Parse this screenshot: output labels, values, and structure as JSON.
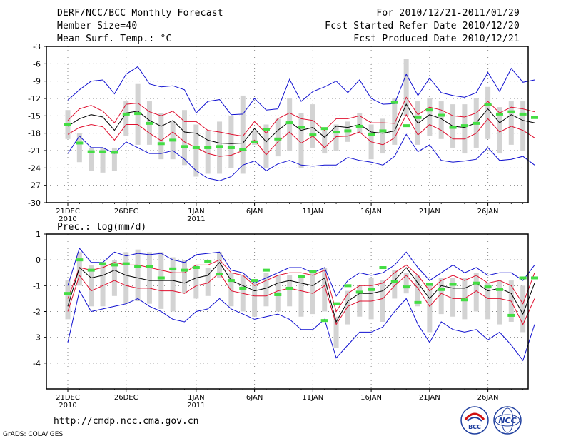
{
  "header": {
    "title": "DERF/NCC/BCC Monthly Forecast",
    "member_size": "Member Size=40",
    "variable": "Mean Surf. Temp.: °C",
    "forecast_for": "For 2010/12/21-2011/01/29",
    "start_date": "Fcst Started Refer Date 2010/12/20",
    "produced_date": "Fcst Produced Date 2010/12/21"
  },
  "footer": {
    "url": "http://cmdp.ncc.cma.gov.cn",
    "grads": "GrADS: COLA/IGES",
    "logo_bcc": "BCC",
    "logo_ncc": "NCC"
  },
  "colors": {
    "box": "#d3d3d3",
    "mean": "#000000",
    "spread": "#e0102f",
    "extreme": "#1010d0",
    "marker": "#44dd44",
    "grid": "#888888"
  },
  "chart_data": [
    {
      "id": "temp",
      "type": "line",
      "title": "Mean Surf. Temp.: °C",
      "ylabel": "°C",
      "ylim": [
        -30,
        -3
      ],
      "yticks": [
        -3,
        -6,
        -9,
        -12,
        -15,
        -18,
        -21,
        -24,
        -27,
        -30
      ],
      "xticks": [
        {
          "day": 1,
          "label": "21DEC",
          "sub": "2010"
        },
        {
          "day": 6,
          "label": "26DEC",
          "sub": ""
        },
        {
          "day": 12,
          "label": "1JAN",
          "sub": "2011"
        },
        {
          "day": 17,
          "label": "6JAN",
          "sub": ""
        },
        {
          "day": 22,
          "label": "11JAN",
          "sub": ""
        },
        {
          "day": 27,
          "label": "16JAN",
          "sub": ""
        },
        {
          "day": 32,
          "label": "21JAN",
          "sub": ""
        },
        {
          "day": 37,
          "label": "26JAN",
          "sub": ""
        }
      ],
      "days": 40,
      "grid": true,
      "series": [
        {
          "name": "ensemble max",
          "values": [
            -12.3,
            -10.5,
            -9.0,
            -8.8,
            -11.2,
            -7.8,
            -6.5,
            -9.5,
            -10.0,
            -9.8,
            -10.5,
            -14.5,
            -12.5,
            -12.2,
            -14.8,
            -14.7,
            -12.0,
            -14.0,
            -13.8,
            -8.7,
            -12.5,
            -10.8,
            -10.0,
            -9.0,
            -11.0,
            -8.8,
            -12.0,
            -13.0,
            -12.9,
            -7.8,
            -11.5,
            -8.5,
            -11.0,
            -11.5,
            -11.8,
            -11.0,
            -7.5,
            -10.8,
            -6.8,
            -9.2,
            -8.8
          ]
        },
        {
          "name": "upper spread",
          "values": [
            -15.8,
            -13.8,
            -13.2,
            -14.2,
            -16.2,
            -13.0,
            -12.8,
            -14.3,
            -15.0,
            -14.2,
            -16.0,
            -16.0,
            -17.5,
            -17.8,
            -18.2,
            -18.5,
            -16.0,
            -18.0,
            -15.5,
            -14.5,
            -15.5,
            -15.8,
            -17.5,
            -15.5,
            -15.5,
            -15.0,
            -16.2,
            -16.2,
            -16.3,
            -11.8,
            -14.8,
            -13.5,
            -14.0,
            -15.0,
            -15.2,
            -14.5,
            -12.5,
            -14.5,
            -13.5,
            -13.8,
            -14.3
          ]
        },
        {
          "name": "mean",
          "values": [
            -16.8,
            -15.5,
            -14.8,
            -15.2,
            -17.5,
            -14.5,
            -14.2,
            -15.8,
            -16.8,
            -15.8,
            -17.8,
            -18.0,
            -19.2,
            -19.7,
            -19.8,
            -19.7,
            -17.2,
            -19.5,
            -17.5,
            -16.0,
            -17.5,
            -17.0,
            -18.7,
            -16.8,
            -17.0,
            -16.5,
            -17.8,
            -18.0,
            -17.6,
            -13.0,
            -16.3,
            -14.8,
            -15.5,
            -16.8,
            -17.0,
            -16.2,
            -13.8,
            -16.2,
            -14.8,
            -15.8,
            -16.2
          ]
        },
        {
          "name": "lower spread",
          "values": [
            -18.2,
            -17.0,
            -16.5,
            -16.9,
            -19.2,
            -16.5,
            -16.5,
            -18.0,
            -19.3,
            -17.8,
            -19.5,
            -20.5,
            -21.5,
            -22.0,
            -21.8,
            -21.0,
            -19.2,
            -21.7,
            -19.5,
            -17.8,
            -19.7,
            -18.5,
            -20.5,
            -18.6,
            -18.5,
            -17.8,
            -19.5,
            -20.0,
            -18.8,
            -14.8,
            -18.3,
            -16.5,
            -17.5,
            -19.0,
            -19.0,
            -18.0,
            -15.5,
            -17.8,
            -16.8,
            -17.5,
            -18.8
          ]
        },
        {
          "name": "ensemble min",
          "values": [
            -21.5,
            -18.5,
            -20.5,
            -20.5,
            -21.5,
            -19.5,
            -20.5,
            -21.5,
            -21.5,
            -21.0,
            -22.5,
            -24.5,
            -25.8,
            -26.2,
            -25.5,
            -23.5,
            -22.8,
            -24.5,
            -23.3,
            -22.7,
            -23.5,
            -23.7,
            -23.5,
            -23.5,
            -22.2,
            -22.7,
            -23.0,
            -23.5,
            -22.0,
            -18.2,
            -21.2,
            -20.0,
            -22.7,
            -23.0,
            -22.8,
            -22.5,
            -20.5,
            -22.7,
            -22.5,
            -22.0,
            -23.5
          ]
        },
        {
          "name": "box high",
          "values": [
            -14.0,
            -18.0,
            -20.5,
            -20.5,
            -20.5,
            -12.5,
            -9.5,
            -12.5,
            -14.5,
            -16.0,
            -14.0,
            -16.5,
            -17.5,
            -16.0,
            -15.0,
            -11.5,
            -17.5,
            -16.5,
            -15.5,
            -12.0,
            -14.5,
            -13.0,
            -17.5,
            -16.5,
            -16.0,
            -14.5,
            -16.5,
            -15.5,
            -12.0,
            -5.2,
            -12.5,
            -12.0,
            -12.5,
            -13.0,
            -13.0,
            -12.0,
            -10.0,
            -13.5,
            -12.5,
            -12.5,
            -13.0
          ]
        },
        {
          "name": "box low",
          "values": [
            -19.0,
            -23.0,
            -24.5,
            -24.8,
            -24.5,
            -18.5,
            -20.0,
            -20.0,
            -22.5,
            -22.5,
            -23.5,
            -25.5,
            -25.0,
            -25.0,
            -24.0,
            -25.0,
            -20.0,
            -24.0,
            -22.0,
            -21.0,
            -24.0,
            -20.5,
            -21.5,
            -21.0,
            -19.5,
            -18.0,
            -22.5,
            -21.5,
            -20.0,
            -15.0,
            -20.0,
            -18.5,
            -19.0,
            -20.5,
            -21.5,
            -20.5,
            -19.0,
            -21.5,
            -20.0,
            -21.0,
            -21.0
          ]
        },
        {
          "name": "marker",
          "values": [
            -16.5,
            -19.7,
            -21.2,
            -21.2,
            -21.3,
            -14.7,
            -14.6,
            -16.3,
            -19.8,
            -19.2,
            -20.3,
            -20.5,
            -20.5,
            -20.3,
            -20.5,
            -20.8,
            -19.5,
            -17.3,
            -19.0,
            -16.2,
            -17.0,
            -18.3,
            -17.2,
            -17.8,
            -17.6,
            -16.8,
            -18.2,
            -17.6,
            -12.7,
            -16.7,
            -15.3,
            -14.0,
            -14.9,
            -17.0,
            -16.7,
            -16.3,
            -13.1,
            -14.7,
            -14.3,
            -14.7,
            -15.3
          ]
        }
      ]
    },
    {
      "id": "prec",
      "type": "line",
      "title": "Prec.: log(mm/d)",
      "ylabel": "log(mm/d)",
      "ylim": [
        -5,
        1
      ],
      "yticks": [
        1,
        0,
        -1,
        -2,
        -3,
        -4
      ],
      "xticks": [
        {
          "day": 1,
          "label": "21DEC",
          "sub": "2010"
        },
        {
          "day": 6,
          "label": "26DEC",
          "sub": ""
        },
        {
          "day": 12,
          "label": "1JAN",
          "sub": "2011"
        },
        {
          "day": 17,
          "label": "6JAN",
          "sub": ""
        },
        {
          "day": 22,
          "label": "11JAN",
          "sub": ""
        },
        {
          "day": 27,
          "label": "16JAN",
          "sub": ""
        },
        {
          "day": 32,
          "label": "21JAN",
          "sub": ""
        },
        {
          "day": 37,
          "label": "26JAN",
          "sub": ""
        }
      ],
      "days": 40,
      "grid": true,
      "series": [
        {
          "name": "ensemble max",
          "values": [
            -1.0,
            0.45,
            -0.1,
            -0.1,
            0.3,
            0.15,
            0.25,
            0.2,
            0.25,
            0.0,
            -0.1,
            0.2,
            0.25,
            0.3,
            -0.4,
            -0.5,
            -0.9,
            -0.7,
            -0.5,
            -0.3,
            -0.3,
            -0.5,
            -0.3,
            -1.4,
            -0.8,
            -0.5,
            -0.6,
            -0.5,
            -0.2,
            0.3,
            -0.3,
            -0.8,
            -0.5,
            -0.2,
            -0.5,
            -0.3,
            -0.6,
            -0.5,
            -0.5,
            -0.8,
            -0.2
          ]
        },
        {
          "name": "upper spread",
          "values": [
            -1.5,
            -0.3,
            -0.4,
            -0.3,
            -0.1,
            -0.2,
            -0.2,
            -0.3,
            -0.4,
            -0.5,
            -0.5,
            -0.2,
            -0.2,
            0.0,
            -0.5,
            -0.6,
            -1.0,
            -0.8,
            -0.6,
            -0.5,
            -0.5,
            -0.6,
            -0.4,
            -2.0,
            -1.3,
            -1.0,
            -1.0,
            -0.9,
            -0.5,
            -0.2,
            -0.6,
            -1.2,
            -0.8,
            -0.6,
            -0.8,
            -0.6,
            -0.9,
            -0.8,
            -1.0,
            -1.7,
            -0.5
          ]
        },
        {
          "name": "mean",
          "values": [
            -1.8,
            -0.3,
            -0.7,
            -0.6,
            -0.4,
            -0.6,
            -0.7,
            -0.8,
            -0.8,
            -0.8,
            -0.9,
            -0.7,
            -0.6,
            -0.1,
            -0.8,
            -1.0,
            -1.2,
            -1.1,
            -0.9,
            -0.8,
            -0.9,
            -1.0,
            -0.7,
            -2.4,
            -1.6,
            -1.3,
            -1.3,
            -1.2,
            -0.8,
            -0.3,
            -0.9,
            -1.5,
            -1.0,
            -1.1,
            -1.1,
            -0.9,
            -1.2,
            -1.1,
            -1.3,
            -2.1,
            -0.9
          ]
        },
        {
          "name": "lower spread",
          "values": [
            -2.0,
            -0.6,
            -1.2,
            -1.0,
            -0.8,
            -1.0,
            -1.1,
            -1.1,
            -1.2,
            -1.2,
            -1.3,
            -1.0,
            -0.9,
            -0.5,
            -1.2,
            -1.3,
            -1.4,
            -1.4,
            -1.2,
            -1.1,
            -1.2,
            -1.3,
            -1.0,
            -2.5,
            -1.8,
            -1.6,
            -1.6,
            -1.5,
            -1.0,
            -0.6,
            -1.1,
            -1.8,
            -1.3,
            -1.5,
            -1.5,
            -1.2,
            -1.5,
            -1.5,
            -1.6,
            -2.5,
            -1.5
          ]
        },
        {
          "name": "ensemble min",
          "values": [
            -3.2,
            -1.2,
            -2.0,
            -1.9,
            -1.8,
            -1.7,
            -1.5,
            -1.8,
            -2.0,
            -2.3,
            -2.4,
            -2.0,
            -1.9,
            -1.5,
            -1.9,
            -2.1,
            -2.3,
            -2.2,
            -2.1,
            -2.3,
            -2.7,
            -2.7,
            -2.3,
            -3.8,
            -3.3,
            -2.8,
            -2.8,
            -2.6,
            -2.0,
            -1.5,
            -2.5,
            -3.2,
            -2.4,
            -2.7,
            -2.8,
            -2.7,
            -3.1,
            -2.8,
            -3.3,
            -3.9,
            -2.5
          ]
        },
        {
          "name": "box high",
          "values": [
            -0.8,
            0.3,
            -0.2,
            -0.2,
            0.0,
            0.3,
            0.4,
            0.3,
            0.3,
            0.1,
            0.0,
            -0.2,
            -0.3,
            0.3,
            -0.5,
            -0.6,
            -0.8,
            -0.5,
            -0.6,
            -0.6,
            -0.7,
            -0.5,
            -0.3,
            -2.2,
            -1.2,
            -1.0,
            -0.7,
            -0.8,
            -0.4,
            -0.5,
            -0.6,
            -1.0,
            -0.7,
            -0.7,
            -0.7,
            -0.5,
            -0.9,
            -0.8,
            -0.8,
            -1.0,
            -1.0
          ]
        },
        {
          "name": "box low",
          "values": [
            -2.3,
            -1.0,
            -1.8,
            -1.8,
            -1.4,
            -1.7,
            -1.6,
            -1.7,
            -1.9,
            -2.0,
            -1.3,
            -1.5,
            -1.4,
            -0.7,
            -1.8,
            -2.0,
            -2.2,
            -1.8,
            -2.0,
            -1.8,
            -2.2,
            -2.1,
            -2.0,
            -3.4,
            -2.5,
            -2.2,
            -2.3,
            -2.4,
            -1.5,
            -1.3,
            -1.8,
            -2.8,
            -2.1,
            -2.2,
            -2.3,
            -2.0,
            -2.3,
            -2.5,
            -2.4,
            -2.8,
            -2.1
          ]
        },
        {
          "name": "marker",
          "values": [
            -1.3,
            0.0,
            -0.4,
            -0.15,
            -0.2,
            -0.15,
            -0.25,
            -0.25,
            -0.7,
            -0.35,
            -0.4,
            -0.3,
            -0.05,
            -0.55,
            -0.8,
            -1.1,
            -0.8,
            -0.4,
            -1.35,
            -1.1,
            -0.65,
            -0.45,
            -2.35,
            -1.7,
            -1.0,
            -1.25,
            -1.15,
            -0.3,
            -0.85,
            -1.05,
            -1.65,
            -0.95,
            -1.15,
            -0.95,
            -1.55,
            -0.9,
            -1.05,
            -1.15,
            -2.15,
            -0.7,
            -0.7
          ]
        }
      ]
    }
  ]
}
